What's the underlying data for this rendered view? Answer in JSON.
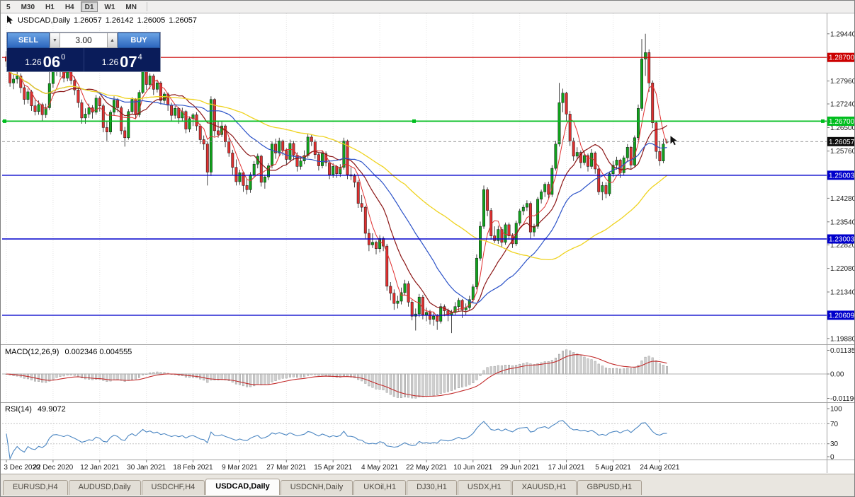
{
  "toolbar": {
    "timeframes": [
      "5",
      "M30",
      "H1",
      "H4",
      "D1",
      "W1",
      "MN"
    ],
    "active": "D1"
  },
  "info_bar": {
    "symbol_period": "USDCAD,Daily",
    "open": "1.26057",
    "high": "1.26142",
    "low": "1.26005",
    "close": "1.26057"
  },
  "trade_panel": {
    "sell_label": "SELL",
    "buy_label": "BUY",
    "volume": "3.00",
    "bid": {
      "prefix": "1.26",
      "big": "06",
      "sup": "0"
    },
    "ask": {
      "prefix": "1.26",
      "big": "07",
      "sup": "4"
    }
  },
  "tabs": {
    "active": "USDCAD,Daily",
    "items": [
      "EURUSD,H4",
      "AUDUSD,Daily",
      "USDCHF,H4",
      "USDCAD,Daily",
      "USDCNH,Daily",
      "UKOil,H1",
      "DJ30,H1",
      "USDX,H1",
      "XAUUSD,H1",
      "GBPUSD,H1"
    ]
  },
  "chart_data": {
    "type": "candlestick",
    "symbol": "USDCAD",
    "period": "Daily",
    "price_axis": {
      "min": 1.1972,
      "max": 1.3008,
      "ticks": [
        "1.29440",
        "1.27960",
        "1.27240",
        "1.26500",
        "1.25760",
        "1.24280",
        "1.23540",
        "1.22820",
        "1.22080",
        "1.21340",
        "1.19880"
      ]
    },
    "time_axis": {
      "ticks": [
        {
          "i": 0,
          "label": "3 Dec 2020"
        },
        {
          "i": 13,
          "label": "22 Dec 2020"
        },
        {
          "i": 26,
          "label": "12 Jan 2021"
        },
        {
          "i": 39,
          "label": "30 Jan 2021"
        },
        {
          "i": 52,
          "label": "18 Feb 2021"
        },
        {
          "i": 65,
          "label": "9 Mar 2021"
        },
        {
          "i": 78,
          "label": "27 Mar 2021"
        },
        {
          "i": 91,
          "label": "15 Apr 2021"
        },
        {
          "i": 104,
          "label": "4 May 2021"
        },
        {
          "i": 117,
          "label": "22 May 2021"
        },
        {
          "i": 130,
          "label": "10 Jun 2021"
        },
        {
          "i": 143,
          "label": "29 Jun 2021"
        },
        {
          "i": 156,
          "label": "17 Jul 2021"
        },
        {
          "i": 169,
          "label": "5 Aug 2021"
        },
        {
          "i": 182,
          "label": "24 Aug 2021"
        }
      ]
    },
    "horizontal_lines": [
      {
        "name": "resistance-line",
        "price": 1.287,
        "label": "1.28700",
        "color": "#cc0000",
        "width": 1.2
      },
      {
        "name": "pivot-line",
        "price": 1.267,
        "label": "1.26700",
        "color": "#00be1e",
        "width": 1.8,
        "handles": true
      },
      {
        "name": "support-line-1",
        "price": 1.25003,
        "label": "1.25003",
        "color": "#0000cc",
        "width": 1.4
      },
      {
        "name": "support-line-2",
        "price": 1.23003,
        "label": "1.23003",
        "color": "#0000cc",
        "width": 1.4
      },
      {
        "name": "support-line-3",
        "price": 1.20609,
        "label": "1.20609",
        "color": "#0000cc",
        "width": 1.4
      }
    ],
    "current_price": {
      "value": 1.26057,
      "label": "1.26057"
    },
    "moving_averages": [
      {
        "period": 5,
        "color": "#e03030",
        "width": 1
      },
      {
        "period": 13,
        "color": "#8b1515",
        "width": 1.2
      },
      {
        "period": 26,
        "color": "#2b52c8",
        "width": 1.2
      },
      {
        "period": 55,
        "color": "#efd320",
        "width": 1.3
      }
    ],
    "indicators": {
      "macd": {
        "name": "MACD(12,26,9)",
        "values": "0.002346 0.004555",
        "params": [
          12,
          26,
          9
        ],
        "axis_labels": [
          "0.01135",
          "0.00",
          "-0.01190"
        ],
        "histogram_color": "#cfcfcf",
        "signal_color": "#c22b2b"
      },
      "rsi": {
        "name": "RSI(14)",
        "value": "49.9072",
        "period": 14,
        "levels": [
          70,
          30
        ],
        "axis_labels": [
          "100",
          "70",
          "30",
          "0"
        ],
        "line_color": "#4b86c2"
      }
    },
    "candles": [
      [
        1.2872,
        1.289,
        1.284,
        1.2858
      ],
      [
        1.2858,
        1.2868,
        1.2778,
        1.279
      ],
      [
        1.279,
        1.2818,
        1.277,
        1.2802
      ],
      [
        1.2802,
        1.2828,
        1.2788,
        1.2812
      ],
      [
        1.2812,
        1.282,
        1.2758,
        1.2775
      ],
      [
        1.2775,
        1.2785,
        1.2722,
        1.2738
      ],
      [
        1.2738,
        1.2772,
        1.2725,
        1.2762
      ],
      [
        1.2762,
        1.2768,
        1.2702,
        1.2718
      ],
      [
        1.2718,
        1.2742,
        1.2688,
        1.27
      ],
      [
        1.27,
        1.2735,
        1.269,
        1.2722
      ],
      [
        1.2722,
        1.2728,
        1.2672,
        1.269
      ],
      [
        1.269,
        1.2725,
        1.268,
        1.2712
      ],
      [
        1.2712,
        1.2892,
        1.2705,
        1.2788
      ],
      [
        1.2788,
        1.2848,
        1.2775,
        1.2836
      ],
      [
        1.2836,
        1.2852,
        1.2812,
        1.2842
      ],
      [
        1.2842,
        1.2855,
        1.2808,
        1.2825
      ],
      [
        1.2825,
        1.2838,
        1.2792,
        1.2805
      ],
      [
        1.2805,
        1.2842,
        1.2795,
        1.283
      ],
      [
        1.283,
        1.2835,
        1.2785,
        1.2798
      ],
      [
        1.2798,
        1.281,
        1.2752,
        1.2768
      ],
      [
        1.2768,
        1.2775,
        1.2712,
        1.2728
      ],
      [
        1.2728,
        1.2738,
        1.2662,
        1.268
      ],
      [
        1.268,
        1.271,
        1.2662,
        1.2692
      ],
      [
        1.2692,
        1.2725,
        1.268,
        1.2712
      ],
      [
        1.2712,
        1.272,
        1.2678,
        1.2698
      ],
      [
        1.2698,
        1.2752,
        1.269,
        1.2742
      ],
      [
        1.2742,
        1.2748,
        1.27,
        1.2718
      ],
      [
        1.2718,
        1.2725,
        1.2635,
        1.265
      ],
      [
        1.265,
        1.2668,
        1.2608,
        1.2636
      ],
      [
        1.2636,
        1.2705,
        1.2628,
        1.2698
      ],
      [
        1.2698,
        1.2748,
        1.2688,
        1.2736
      ],
      [
        1.2736,
        1.2742,
        1.2698,
        1.2712
      ],
      [
        1.2712,
        1.2718,
        1.2628,
        1.264
      ],
      [
        1.264,
        1.2652,
        1.259,
        1.2618
      ],
      [
        1.2618,
        1.2708,
        1.2612,
        1.27
      ],
      [
        1.27,
        1.2745,
        1.2692,
        1.2738
      ],
      [
        1.2738,
        1.2742,
        1.2678,
        1.269
      ],
      [
        1.269,
        1.2768,
        1.2682,
        1.276
      ],
      [
        1.276,
        1.2852,
        1.2755,
        1.284
      ],
      [
        1.284,
        1.2848,
        1.2768,
        1.2785
      ],
      [
        1.2785,
        1.282,
        1.277,
        1.2812
      ],
      [
        1.2812,
        1.2818,
        1.2752,
        1.277
      ],
      [
        1.277,
        1.2798,
        1.276,
        1.279
      ],
      [
        1.279,
        1.2795,
        1.2722,
        1.2735
      ],
      [
        1.2735,
        1.2762,
        1.2725,
        1.2755
      ],
      [
        1.2755,
        1.276,
        1.2702,
        1.272
      ],
      [
        1.272,
        1.2728,
        1.267,
        1.2688
      ],
      [
        1.2688,
        1.2718,
        1.2678,
        1.271
      ],
      [
        1.271,
        1.2715,
        1.2662,
        1.268
      ],
      [
        1.268,
        1.2712,
        1.2668,
        1.27
      ],
      [
        1.27,
        1.2705,
        1.2632,
        1.2645
      ],
      [
        1.2645,
        1.2685,
        1.2635,
        1.2678
      ],
      [
        1.2678,
        1.2695,
        1.2655,
        1.269
      ],
      [
        1.269,
        1.2698,
        1.264,
        1.2655
      ],
      [
        1.2655,
        1.2662,
        1.2598,
        1.2612
      ],
      [
        1.2612,
        1.2625,
        1.258,
        1.2598
      ],
      [
        1.2598,
        1.2605,
        1.2468,
        1.251
      ],
      [
        1.251,
        1.2748,
        1.2498,
        1.2738
      ],
      [
        1.2738,
        1.2742,
        1.2622,
        1.264
      ],
      [
        1.264,
        1.2672,
        1.2618,
        1.2628
      ],
      [
        1.2628,
        1.2668,
        1.262,
        1.2655
      ],
      [
        1.2655,
        1.266,
        1.2588,
        1.2605
      ],
      [
        1.2605,
        1.2618,
        1.2558,
        1.257
      ],
      [
        1.257,
        1.258,
        1.2502,
        1.2525
      ],
      [
        1.2525,
        1.255,
        1.2468,
        1.248
      ],
      [
        1.248,
        1.2518,
        1.247,
        1.2508
      ],
      [
        1.2508,
        1.2512,
        1.2448,
        1.2468
      ],
      [
        1.2468,
        1.2488,
        1.244,
        1.2455
      ],
      [
        1.2455,
        1.251,
        1.2445,
        1.2502
      ],
      [
        1.2502,
        1.2545,
        1.2492,
        1.2535
      ],
      [
        1.2535,
        1.2568,
        1.2522,
        1.256
      ],
      [
        1.256,
        1.2565,
        1.2465,
        1.2478
      ],
      [
        1.2478,
        1.2502,
        1.2458,
        1.2495
      ],
      [
        1.2495,
        1.2538,
        1.2485,
        1.253
      ],
      [
        1.253,
        1.2605,
        1.2522,
        1.2598
      ],
      [
        1.2598,
        1.2615,
        1.2552,
        1.257
      ],
      [
        1.257,
        1.2618,
        1.256,
        1.2608
      ],
      [
        1.2608,
        1.2612,
        1.2562,
        1.2578
      ],
      [
        1.2578,
        1.2585,
        1.2532,
        1.255
      ],
      [
        1.255,
        1.2612,
        1.2542,
        1.26
      ],
      [
        1.26,
        1.2608,
        1.2548,
        1.2563
      ],
      [
        1.2563,
        1.2572,
        1.2512,
        1.2528
      ],
      [
        1.2528,
        1.256,
        1.2518,
        1.2545
      ],
      [
        1.2545,
        1.2578,
        1.2535,
        1.2562
      ],
      [
        1.2562,
        1.2632,
        1.2555,
        1.262
      ],
      [
        1.262,
        1.2628,
        1.2592,
        1.2605
      ],
      [
        1.2605,
        1.2612,
        1.2552,
        1.2565
      ],
      [
        1.2565,
        1.2572,
        1.2515,
        1.253
      ],
      [
        1.253,
        1.2578,
        1.2522,
        1.2568
      ],
      [
        1.2568,
        1.2575,
        1.2528,
        1.254
      ],
      [
        1.254,
        1.2548,
        1.2488,
        1.2502
      ],
      [
        1.2502,
        1.2538,
        1.2492,
        1.2528
      ],
      [
        1.2528,
        1.2532,
        1.2492,
        1.2505
      ],
      [
        1.2505,
        1.2535,
        1.2495,
        1.2525
      ],
      [
        1.2525,
        1.2618,
        1.2518,
        1.2608
      ],
      [
        1.2608,
        1.2612,
        1.2488,
        1.2502
      ],
      [
        1.2502,
        1.2525,
        1.2485,
        1.2498
      ],
      [
        1.2498,
        1.2505,
        1.2462,
        1.2478
      ],
      [
        1.2478,
        1.2485,
        1.2398,
        1.2412
      ],
      [
        1.2412,
        1.2438,
        1.2385,
        1.24
      ],
      [
        1.24,
        1.2405,
        1.2302,
        1.2318
      ],
      [
        1.2318,
        1.2332,
        1.2262,
        1.2282
      ],
      [
        1.2282,
        1.2318,
        1.2272,
        1.229
      ],
      [
        1.229,
        1.2295,
        1.2252,
        1.227
      ],
      [
        1.227,
        1.2312,
        1.2258,
        1.2302
      ],
      [
        1.2302,
        1.2308,
        1.2262,
        1.2278
      ],
      [
        1.2278,
        1.2285,
        1.2138,
        1.2152
      ],
      [
        1.2152,
        1.2165,
        1.2108,
        1.213
      ],
      [
        1.213,
        1.2142,
        1.2078,
        1.2098
      ],
      [
        1.2098,
        1.2122,
        1.2082,
        1.2105
      ],
      [
        1.2105,
        1.2148,
        1.2095,
        1.2132
      ],
      [
        1.2132,
        1.2172,
        1.2122,
        1.216
      ],
      [
        1.216,
        1.2168,
        1.2088,
        1.2102
      ],
      [
        1.2102,
        1.211,
        1.2045,
        1.2058
      ],
      [
        1.2058,
        1.2082,
        1.2013,
        1.2065
      ],
      [
        1.2065,
        1.2128,
        1.2055,
        1.2118
      ],
      [
        1.2118,
        1.2125,
        1.2048,
        1.2062
      ],
      [
        1.2062,
        1.2085,
        1.2042,
        1.207
      ],
      [
        1.207,
        1.2078,
        1.2032,
        1.2048
      ],
      [
        1.2048,
        1.2072,
        1.2028,
        1.2058
      ],
      [
        1.2058,
        1.2065,
        1.2015,
        1.2042
      ],
      [
        1.2042,
        1.2098,
        1.2035,
        1.2088
      ],
      [
        1.2088,
        1.2095,
        1.2058,
        1.2075
      ],
      [
        1.2075,
        1.2082,
        1.2042,
        1.2062
      ],
      [
        1.2062,
        1.2078,
        1.2005,
        1.207
      ],
      [
        1.207,
        1.2102,
        1.2062,
        1.2088
      ],
      [
        1.2088,
        1.2115,
        1.2075,
        1.2108
      ],
      [
        1.2108,
        1.2112,
        1.2052,
        1.2078
      ],
      [
        1.2078,
        1.2098,
        1.2062,
        1.2085
      ],
      [
        1.2085,
        1.2122,
        1.2078,
        1.211
      ],
      [
        1.211,
        1.2158,
        1.2098,
        1.215
      ],
      [
        1.215,
        1.2252,
        1.2142,
        1.224
      ],
      [
        1.224,
        1.2355,
        1.2232,
        1.234
      ],
      [
        1.234,
        1.2468,
        1.2332,
        1.2455
      ],
      [
        1.2455,
        1.2462,
        1.2372,
        1.239
      ],
      [
        1.239,
        1.2398,
        1.2298,
        1.231
      ],
      [
        1.231,
        1.234,
        1.2288,
        1.2295
      ],
      [
        1.2295,
        1.2342,
        1.2285,
        1.233
      ],
      [
        1.233,
        1.2338,
        1.2275,
        1.229
      ],
      [
        1.229,
        1.2352,
        1.2282,
        1.2345
      ],
      [
        1.2345,
        1.2352,
        1.2298,
        1.231
      ],
      [
        1.231,
        1.2318,
        1.2272,
        1.2285
      ],
      [
        1.2285,
        1.2358,
        1.2278,
        1.235
      ],
      [
        1.235,
        1.2395,
        1.2342,
        1.2388
      ],
      [
        1.2388,
        1.2408,
        1.2375,
        1.24
      ],
      [
        1.24,
        1.2422,
        1.2388,
        1.2412
      ],
      [
        1.2412,
        1.2418,
        1.2302,
        1.2322
      ],
      [
        1.2322,
        1.2348,
        1.2308,
        1.234
      ],
      [
        1.234,
        1.2432,
        1.2332,
        1.2425
      ],
      [
        1.2425,
        1.2455,
        1.2412,
        1.2448
      ],
      [
        1.2448,
        1.2478,
        1.2432,
        1.2472
      ],
      [
        1.2472,
        1.248,
        1.2428,
        1.244
      ],
      [
        1.244,
        1.2532,
        1.2432,
        1.2522
      ],
      [
        1.2522,
        1.2608,
        1.2515,
        1.2598
      ],
      [
        1.2598,
        1.279,
        1.259,
        1.2728
      ],
      [
        1.2728,
        1.2772,
        1.2698,
        1.2758
      ],
      [
        1.2758,
        1.2762,
        1.2672,
        1.2692
      ],
      [
        1.2692,
        1.2702,
        1.2592,
        1.2608
      ],
      [
        1.2608,
        1.2618,
        1.2545,
        1.256
      ],
      [
        1.256,
        1.2588,
        1.2548,
        1.2572
      ],
      [
        1.2572,
        1.2578,
        1.2522,
        1.254
      ],
      [
        1.254,
        1.2575,
        1.2532,
        1.2562
      ],
      [
        1.2562,
        1.2568,
        1.2512,
        1.2528
      ],
      [
        1.2528,
        1.2582,
        1.252,
        1.257
      ],
      [
        1.257,
        1.2575,
        1.2505,
        1.252
      ],
      [
        1.252,
        1.2532,
        1.2438,
        1.2448
      ],
      [
        1.2448,
        1.248,
        1.2422,
        1.2468
      ],
      [
        1.2468,
        1.2478,
        1.2428,
        1.2442
      ],
      [
        1.2442,
        1.2512,
        1.2435,
        1.2505
      ],
      [
        1.2505,
        1.2545,
        1.2495,
        1.2532
      ],
      [
        1.2532,
        1.2558,
        1.2518,
        1.2548
      ],
      [
        1.2548,
        1.2552,
        1.2492,
        1.2508
      ],
      [
        1.2508,
        1.2562,
        1.25,
        1.2555
      ],
      [
        1.2555,
        1.2598,
        1.2545,
        1.2588
      ],
      [
        1.2588,
        1.2592,
        1.2518,
        1.2532
      ],
      [
        1.2532,
        1.2625,
        1.2525,
        1.2618
      ],
      [
        1.2618,
        1.2722,
        1.261,
        1.271
      ],
      [
        1.271,
        1.2928,
        1.2702,
        1.2865
      ],
      [
        1.2865,
        1.2944,
        1.2812,
        1.2885
      ],
      [
        1.2885,
        1.2895,
        1.2762,
        1.279
      ],
      [
        1.279,
        1.2798,
        1.2648,
        1.2665
      ],
      [
        1.2665,
        1.2672,
        1.2552,
        1.2575
      ],
      [
        1.2575,
        1.2608,
        1.253,
        1.2545
      ],
      [
        1.2545,
        1.2615,
        1.2538,
        1.2598
      ],
      [
        1.26057,
        1.26142,
        1.26005,
        1.26057
      ]
    ]
  }
}
